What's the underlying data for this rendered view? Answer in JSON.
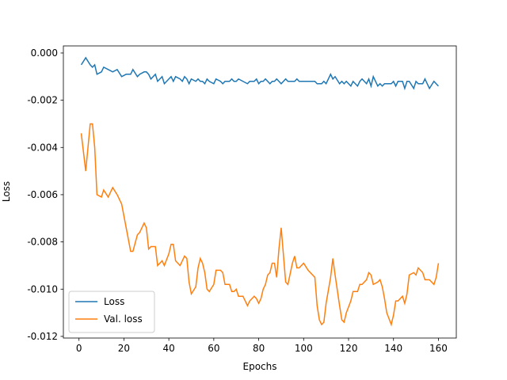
{
  "chart_data": {
    "type": "line",
    "xlabel": "Epochs",
    "ylabel": "Loss",
    "x": [
      1,
      3,
      5,
      6,
      7,
      8,
      10,
      11,
      13,
      15,
      17,
      19,
      21,
      23,
      24,
      26,
      27,
      29,
      30,
      31,
      32,
      34,
      35,
      37,
      38,
      40,
      41,
      42,
      43,
      45,
      46,
      47,
      48,
      49,
      50,
      52,
      53,
      54,
      55,
      56,
      57,
      58,
      60,
      61,
      63,
      64,
      65,
      67,
      68,
      69,
      70,
      71,
      73,
      75,
      76,
      78,
      79,
      80,
      81,
      82,
      83,
      84,
      85,
      86,
      87,
      88,
      89,
      90,
      92,
      93,
      95,
      96,
      97,
      98,
      100,
      102,
      105,
      106,
      107,
      108,
      109,
      110,
      112,
      113,
      114,
      116,
      117,
      118,
      119,
      121,
      122,
      124,
      125,
      126,
      128,
      129,
      130,
      131,
      133,
      134,
      135,
      136,
      137,
      139,
      140,
      141,
      142,
      144,
      145,
      146,
      147,
      149,
      150,
      151,
      153,
      154,
      156,
      158,
      159,
      160
    ],
    "series": [
      {
        "name": "Loss",
        "color": "#1f77b4",
        "values": [
          -0.0005,
          -0.0002,
          -0.0005,
          -0.0006,
          -0.0005,
          -0.0009,
          -0.0008,
          -0.0006,
          -0.0007,
          -0.0008,
          -0.0007,
          -0.001,
          -0.0009,
          -0.0009,
          -0.0007,
          -0.001,
          -0.0009,
          -0.0008,
          -0.0008,
          -0.0009,
          -0.0011,
          -0.0009,
          -0.0012,
          -0.001,
          -0.0013,
          -0.0011,
          -0.001,
          -0.0012,
          -0.001,
          -0.0011,
          -0.0012,
          -0.001,
          -0.0011,
          -0.0013,
          -0.0011,
          -0.0012,
          -0.0011,
          -0.0012,
          -0.0012,
          -0.0013,
          -0.0011,
          -0.0012,
          -0.0013,
          -0.0011,
          -0.0012,
          -0.0013,
          -0.0012,
          -0.0012,
          -0.0011,
          -0.0012,
          -0.0012,
          -0.0011,
          -0.0012,
          -0.0013,
          -0.0012,
          -0.0012,
          -0.0011,
          -0.0013,
          -0.0012,
          -0.0012,
          -0.0011,
          -0.0012,
          -0.0013,
          -0.0012,
          -0.0012,
          -0.0011,
          -0.0012,
          -0.0013,
          -0.0011,
          -0.0012,
          -0.0012,
          -0.0012,
          -0.0011,
          -0.0012,
          -0.0012,
          -0.0012,
          -0.0012,
          -0.0013,
          -0.0013,
          -0.0013,
          -0.0012,
          -0.0013,
          -0.0009,
          -0.0011,
          -0.001,
          -0.0013,
          -0.0012,
          -0.0013,
          -0.0012,
          -0.0014,
          -0.0012,
          -0.0014,
          -0.0012,
          -0.0011,
          -0.0013,
          -0.0011,
          -0.0014,
          -0.001,
          -0.0014,
          -0.0013,
          -0.0014,
          -0.0013,
          -0.0013,
          -0.0013,
          -0.0012,
          -0.0014,
          -0.0012,
          -0.0012,
          -0.0015,
          -0.0012,
          -0.0012,
          -0.0015,
          -0.0012,
          -0.0013,
          -0.0013,
          -0.0011,
          -0.0015,
          -0.0012,
          -0.0013,
          -0.0014
        ]
      },
      {
        "name": "Val. loss",
        "color": "#ff7f0e",
        "values": [
          -0.0034,
          -0.005,
          -0.003,
          -0.003,
          -0.004,
          -0.006,
          -0.0061,
          -0.0058,
          -0.0061,
          -0.0057,
          -0.006,
          -0.0064,
          -0.0074,
          -0.0084,
          -0.0084,
          -0.0077,
          -0.0076,
          -0.0072,
          -0.0074,
          -0.0083,
          -0.0082,
          -0.0082,
          -0.009,
          -0.0088,
          -0.009,
          -0.0085,
          -0.0081,
          -0.0081,
          -0.0088,
          -0.009,
          -0.0088,
          -0.0086,
          -0.0087,
          -0.0097,
          -0.0102,
          -0.0099,
          -0.0091,
          -0.0087,
          -0.0089,
          -0.0093,
          -0.01,
          -0.0101,
          -0.0098,
          -0.0092,
          -0.0092,
          -0.0093,
          -0.0098,
          -0.0098,
          -0.0101,
          -0.0101,
          -0.01,
          -0.0103,
          -0.0103,
          -0.0107,
          -0.0105,
          -0.0103,
          -0.0104,
          -0.0106,
          -0.0104,
          -0.01,
          -0.0098,
          -0.0094,
          -0.0093,
          -0.0089,
          -0.0089,
          -0.0095,
          -0.0083,
          -0.0074,
          -0.0097,
          -0.0098,
          -0.0089,
          -0.0086,
          -0.0091,
          -0.0091,
          -0.0089,
          -0.0092,
          -0.0095,
          -0.0107,
          -0.0113,
          -0.0115,
          -0.0114,
          -0.0106,
          -0.0095,
          -0.0087,
          -0.0094,
          -0.0107,
          -0.0113,
          -0.0114,
          -0.011,
          -0.0105,
          -0.0101,
          -0.0101,
          -0.0098,
          -0.0098,
          -0.0096,
          -0.0093,
          -0.0094,
          -0.0098,
          -0.0097,
          -0.0096,
          -0.0099,
          -0.0104,
          -0.011,
          -0.0115,
          -0.0111,
          -0.0105,
          -0.0105,
          -0.0103,
          -0.0106,
          -0.0102,
          -0.0094,
          -0.0093,
          -0.0094,
          -0.0091,
          -0.0093,
          -0.0096,
          -0.0096,
          -0.0098,
          -0.0095,
          -0.0089
        ]
      }
    ],
    "xlim": [
      -6.95,
      167.95
    ],
    "xticks": [
      0,
      20,
      40,
      60,
      80,
      100,
      120,
      140,
      160
    ],
    "ylim": [
      -0.01207,
      0.0003
    ],
    "yticks": [
      {
        "value": 0,
        "label": "0.000"
      },
      -0.002,
      -0.004,
      -0.006,
      -0.008,
      {
        "value": -0.01,
        "label": "-0.010"
      },
      -0.012
    ],
    "grid": false,
    "legend": "lower left"
  }
}
